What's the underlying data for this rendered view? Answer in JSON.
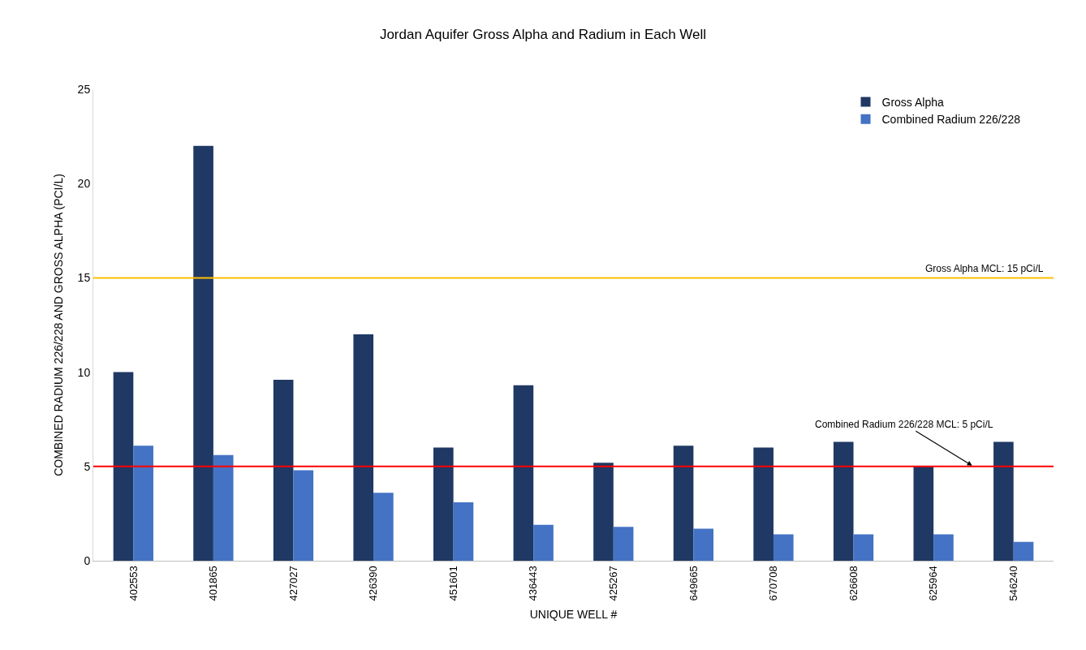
{
  "chart_data": {
    "type": "bar",
    "title": "Jordan Aquifer Gross Alpha and Radium in Each Well",
    "xlabel": "UNIQUE WELL #",
    "ylabel": "COMBINED RADIUM 226/228 AND GROSS ALPHA (PCI/L)",
    "categories": [
      "402553",
      "401865",
      "427027",
      "426390",
      "451601",
      "436443",
      "425267",
      "649665",
      "670708",
      "626608",
      "625964",
      "546240"
    ],
    "series": [
      {
        "name": "Gross Alpha",
        "color": "#203864",
        "values": [
          10,
          22,
          9.6,
          12,
          6,
          9.3,
          5.2,
          6.1,
          6,
          6.3,
          5,
          6.3
        ]
      },
      {
        "name": "Combined Radium 226/228",
        "color": "#4472c4",
        "values": [
          6.1,
          5.6,
          4.8,
          3.6,
          3.1,
          1.9,
          1.8,
          1.7,
          1.4,
          1.4,
          1.4,
          1.0
        ]
      }
    ],
    "ylim": [
      0,
      25
    ],
    "yticks": [
      0,
      5,
      10,
      15,
      20,
      25
    ],
    "grid": false,
    "legend": "top right",
    "ref_lines": [
      {
        "axis": "y",
        "value": 15,
        "label": "Gross Alpha MCL: 15 pCi/L",
        "color": "#ffc000"
      },
      {
        "axis": "y",
        "value": 5,
        "label": "Combined Radium 226/228 MCL: 5 pCi/L",
        "color": "#ff0000"
      }
    ]
  }
}
